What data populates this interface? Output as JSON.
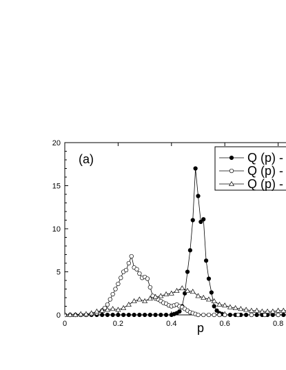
{
  "chart_data": {
    "type": "scatter",
    "panel_label": "(a)",
    "xlabel": "p",
    "ylabel": "",
    "xlim": [
      0,
      0.85
    ],
    "ylim": [
      0,
      20
    ],
    "xticks": [
      "0",
      "0.2",
      "0.4",
      "0.6",
      "0.8"
    ],
    "yticks": [
      "0",
      "5",
      "10",
      "15",
      "20"
    ],
    "legend_position": "top-right",
    "series": [
      {
        "name": "Q (p) -",
        "marker": "filled-circle",
        "color": "#000000",
        "x": [
          0.0,
          0.02,
          0.04,
          0.06,
          0.08,
          0.1,
          0.12,
          0.14,
          0.16,
          0.18,
          0.2,
          0.22,
          0.24,
          0.26,
          0.28,
          0.3,
          0.32,
          0.34,
          0.36,
          0.38,
          0.4,
          0.41,
          0.42,
          0.43,
          0.44,
          0.45,
          0.46,
          0.47,
          0.48,
          0.49,
          0.5,
          0.51,
          0.52,
          0.53,
          0.54,
          0.55,
          0.56,
          0.57,
          0.58,
          0.59,
          0.6,
          0.62,
          0.64,
          0.66,
          0.68,
          0.7,
          0.72,
          0.74,
          0.76,
          0.78,
          0.8,
          0.82,
          0.84
        ],
        "y": [
          0,
          0,
          0,
          0,
          0,
          0,
          0,
          0,
          0,
          0,
          0,
          0,
          0,
          0,
          0,
          0,
          0,
          0,
          0,
          0,
          0,
          0.1,
          0.2,
          0.4,
          1.0,
          2.5,
          5.0,
          7.5,
          11.0,
          17.0,
          13.8,
          10.8,
          11.1,
          6.3,
          4.2,
          2.6,
          1.0,
          0.5,
          0.2,
          0.1,
          0,
          0,
          0,
          0,
          0,
          0,
          0,
          0,
          0,
          0,
          0,
          0,
          0
        ]
      },
      {
        "name": "Q (p) -",
        "marker": "open-circle",
        "color": "#000000",
        "x": [
          0.0,
          0.02,
          0.04,
          0.06,
          0.08,
          0.1,
          0.12,
          0.14,
          0.15,
          0.16,
          0.17,
          0.18,
          0.19,
          0.2,
          0.21,
          0.22,
          0.23,
          0.24,
          0.25,
          0.26,
          0.27,
          0.28,
          0.29,
          0.3,
          0.31,
          0.32,
          0.33,
          0.34,
          0.35,
          0.36,
          0.37,
          0.38,
          0.39,
          0.4,
          0.41,
          0.42,
          0.43,
          0.44,
          0.45,
          0.46,
          0.47,
          0.48,
          0.49,
          0.5,
          0.52,
          0.54,
          0.56,
          0.58,
          0.6,
          0.65,
          0.7,
          0.75,
          0.8,
          0.84
        ],
        "y": [
          0,
          0,
          0,
          0,
          0,
          0.1,
          0.2,
          0.5,
          0.8,
          1.2,
          1.8,
          2.4,
          3.0,
          3.6,
          4.3,
          5.0,
          5.2,
          6.0,
          6.8,
          5.5,
          5.3,
          4.8,
          4.3,
          4.4,
          4.2,
          3.2,
          2.2,
          1.9,
          1.8,
          1.6,
          1.4,
          1.3,
          1.1,
          1.0,
          1.1,
          1.2,
          1.0,
          0.9,
          0.7,
          0.5,
          0.3,
          0.2,
          0.1,
          0,
          0,
          0,
          0,
          0,
          0,
          0,
          0,
          0,
          0,
          0
        ]
      },
      {
        "name": "Q (p) -",
        "marker": "open-triangle",
        "color": "#000000",
        "x": [
          0.0,
          0.02,
          0.04,
          0.06,
          0.08,
          0.1,
          0.12,
          0.14,
          0.16,
          0.18,
          0.2,
          0.22,
          0.24,
          0.26,
          0.28,
          0.3,
          0.32,
          0.34,
          0.36,
          0.38,
          0.4,
          0.42,
          0.44,
          0.46,
          0.48,
          0.5,
          0.52,
          0.54,
          0.56,
          0.58,
          0.6,
          0.62,
          0.64,
          0.66,
          0.68,
          0.7,
          0.72,
          0.74,
          0.76,
          0.78,
          0.8,
          0.82,
          0.84
        ],
        "y": [
          0,
          0,
          0,
          0.1,
          0.1,
          0.2,
          0.4,
          0.5,
          0.6,
          0.7,
          0.6,
          0.8,
          1.2,
          1.6,
          1.8,
          1.6,
          1.9,
          2.1,
          2.2,
          2.4,
          2.5,
          2.8,
          3.1,
          2.8,
          2.7,
          2.2,
          2.0,
          1.8,
          1.6,
          1.2,
          1.1,
          0.9,
          0.8,
          0.7,
          0.6,
          0.5,
          0.5,
          0.4,
          0.4,
          0.4,
          0.5,
          0.5,
          0.5
        ]
      }
    ]
  }
}
